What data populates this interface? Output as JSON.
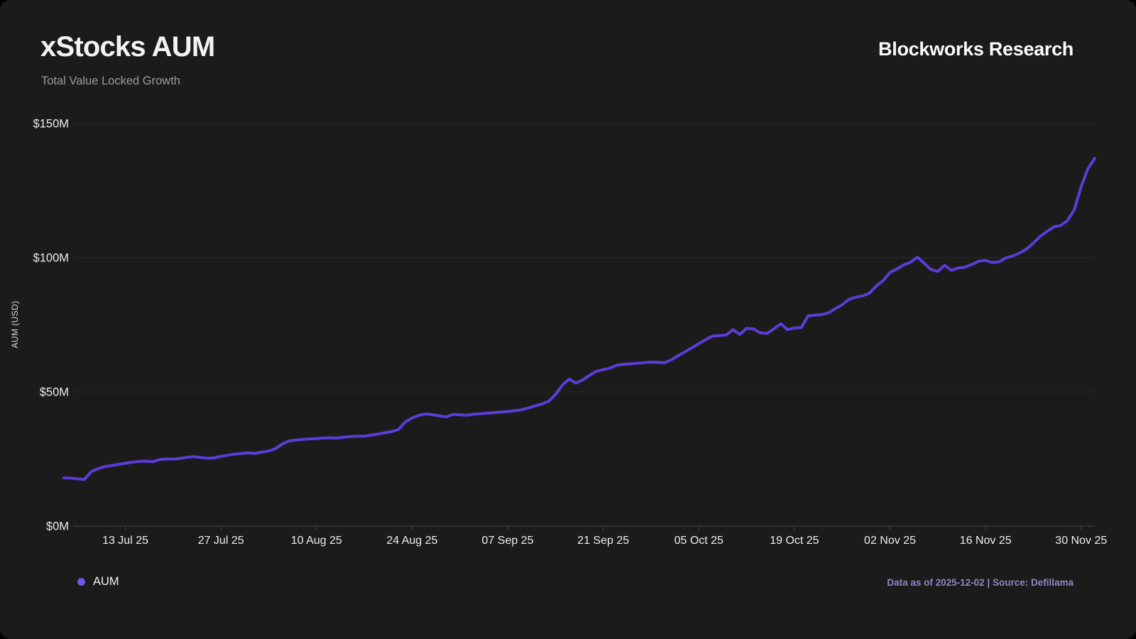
{
  "header": {
    "title": "xStocks AUM",
    "subtitle": "Total Value Locked Growth",
    "brand": "Blockworks Research"
  },
  "legend": {
    "label": "AUM"
  },
  "footer": {
    "text": "Data as of 2025-12-02 | Source: Defillama"
  },
  "colors": {
    "background": "#1b1b1b",
    "line": "#5a3dd8",
    "legend_dot": "#6e56e4",
    "grid": "#2b2b2b",
    "axis": "#474747",
    "tick_text": "#ededed",
    "footer_text": "#8e86c4"
  },
  "chart_data": {
    "type": "line",
    "title": "xStocks AUM",
    "subtitle": "Total Value Locked Growth",
    "xlabel": "",
    "ylabel": "AUM (USD)",
    "unit": "USD millions",
    "ylim": [
      0,
      150
    ],
    "y_tick_values": [
      0,
      50,
      100,
      150
    ],
    "y_tick_labels": [
      "$0M",
      "$50M",
      "$100M",
      "$150M"
    ],
    "grid": "horizontal-only",
    "legend_position": "bottom-left",
    "start_date": "2025-07-04",
    "end_date": "2025-12-02",
    "x_tick_labels": [
      "13 Jul 25",
      "27 Jul 25",
      "10 Aug 25",
      "24 Aug 25",
      "07 Sep 25",
      "21 Sep 25",
      "05 Oct 25",
      "19 Oct 25",
      "02 Nov 25",
      "16 Nov 25",
      "30 Nov 25"
    ],
    "x_tick_indices": [
      9,
      23,
      37,
      51,
      65,
      79,
      93,
      107,
      121,
      135,
      149
    ],
    "series": [
      {
        "name": "AUM",
        "cadence": "daily",
        "values": [
          18.0,
          17.9,
          17.6,
          17.4,
          20.3,
          21.4,
          22.2,
          22.6,
          23.0,
          23.4,
          23.8,
          24.1,
          24.2,
          24.0,
          24.8,
          25.0,
          25.0,
          25.2,
          25.6,
          25.9,
          25.6,
          25.3,
          25.4,
          26.0,
          26.4,
          26.8,
          27.1,
          27.3,
          27.1,
          27.6,
          28.0,
          28.9,
          30.6,
          31.7,
          32.1,
          32.3,
          32.5,
          32.6,
          32.8,
          32.9,
          32.8,
          33.1,
          33.4,
          33.5,
          33.5,
          33.9,
          34.3,
          34.8,
          35.2,
          36.0,
          38.8,
          40.3,
          41.3,
          41.8,
          41.5,
          41.1,
          40.7,
          41.6,
          41.5,
          41.3,
          41.7,
          41.9,
          42.1,
          42.3,
          42.5,
          42.7,
          43.0,
          43.3,
          44.0,
          44.8,
          45.5,
          46.5,
          49.0,
          52.5,
          54.8,
          53.3,
          54.5,
          56.2,
          57.7,
          58.3,
          58.9,
          60.0,
          60.3,
          60.5,
          60.7,
          60.9,
          61.1,
          61.0,
          60.9,
          62.0,
          63.5,
          65.0,
          66.5,
          68.0,
          69.5,
          70.8,
          71.0,
          71.2,
          73.2,
          71.4,
          73.7,
          73.5,
          72.0,
          71.8,
          73.5,
          75.4,
          73.2,
          73.8,
          74.0,
          78.3,
          78.6,
          78.8,
          79.5,
          81.0,
          82.5,
          84.5,
          85.3,
          85.8,
          86.8,
          89.5,
          91.5,
          94.5,
          95.8,
          97.3,
          98.3,
          100.2,
          98.0,
          95.6,
          94.9,
          97.2,
          95.3,
          96.2,
          96.5,
          97.5,
          98.7,
          99.0,
          98.2,
          98.5,
          100.0,
          100.7,
          101.8,
          103.2,
          105.5,
          108.0,
          109.8,
          111.5,
          112.0,
          113.8,
          118.0,
          126.5,
          133.2,
          137.0
        ]
      }
    ]
  }
}
